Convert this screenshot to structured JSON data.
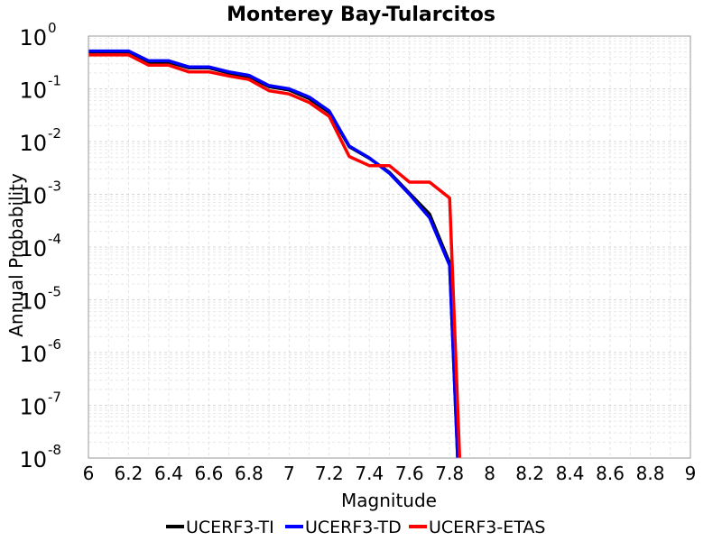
{
  "chart_data": {
    "type": "line",
    "title": "Monterey Bay-Tularcitos",
    "xlabel": "Magnitude",
    "ylabel": "Annual Probability",
    "xlim": [
      6,
      9
    ],
    "ylim": [
      1e-08,
      1
    ],
    "yscale": "log",
    "xticks": [
      "6",
      "6.2",
      "6.4",
      "6.6",
      "6.8",
      "7",
      "7.2",
      "7.4",
      "7.6",
      "7.8",
      "8",
      "8.2",
      "8.4",
      "8.6",
      "8.8",
      "9"
    ],
    "yticks": [
      {
        "base": "10",
        "exp": "0"
      },
      {
        "base": "10",
        "exp": "-1"
      },
      {
        "base": "10",
        "exp": "-2"
      },
      {
        "base": "10",
        "exp": "-3"
      },
      {
        "base": "10",
        "exp": "-4"
      },
      {
        "base": "10",
        "exp": "-5"
      },
      {
        "base": "10",
        "exp": "-6"
      },
      {
        "base": "10",
        "exp": "-7"
      },
      {
        "base": "10",
        "exp": "-8"
      }
    ],
    "grid": true,
    "legend_position": "bottom",
    "series": [
      {
        "name": "UCERF3-TI",
        "color": "#000000",
        "x": [
          6.0,
          6.2,
          6.3,
          6.4,
          6.5,
          6.6,
          6.7,
          6.8,
          6.9,
          7.0,
          7.1,
          7.2,
          7.3,
          7.4,
          7.5,
          7.6,
          7.7,
          7.8,
          7.84
        ],
        "y": [
          0.5,
          0.5,
          0.32,
          0.32,
          0.25,
          0.25,
          0.2,
          0.17,
          0.11,
          0.095,
          0.065,
          0.036,
          0.008,
          0.0048,
          0.0026,
          0.00105,
          0.00042,
          5e-05,
          1e-08
        ]
      },
      {
        "name": "UCERF3-TD",
        "color": "#0000ff",
        "x": [
          6.0,
          6.2,
          6.3,
          6.4,
          6.5,
          6.6,
          6.7,
          6.8,
          6.9,
          7.0,
          7.1,
          7.2,
          7.3,
          7.4,
          7.5,
          7.6,
          7.7,
          7.8,
          7.84
        ],
        "y": [
          0.52,
          0.52,
          0.34,
          0.34,
          0.26,
          0.26,
          0.21,
          0.18,
          0.115,
          0.1,
          0.07,
          0.038,
          0.0082,
          0.0049,
          0.0025,
          0.001,
          0.00036,
          4.5e-05,
          1e-08
        ]
      },
      {
        "name": "UCERF3-ETAS",
        "color": "#ff0000",
        "x": [
          6.0,
          6.2,
          6.3,
          6.4,
          6.5,
          6.6,
          6.7,
          6.8,
          6.9,
          7.0,
          7.1,
          7.2,
          7.3,
          7.4,
          7.5,
          7.6,
          7.7,
          7.8,
          7.85
        ],
        "y": [
          0.44,
          0.44,
          0.28,
          0.28,
          0.21,
          0.21,
          0.175,
          0.15,
          0.092,
          0.08,
          0.055,
          0.03,
          0.0052,
          0.0035,
          0.0035,
          0.0017,
          0.0017,
          0.00085,
          1e-08
        ]
      }
    ]
  }
}
